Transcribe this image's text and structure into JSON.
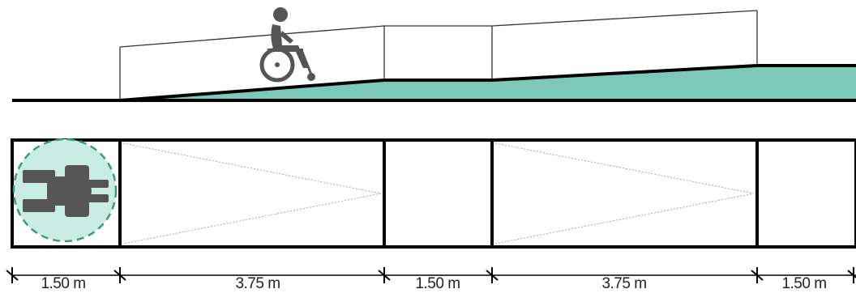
{
  "diagram": {
    "segments": [
      {
        "label": "1.50 m",
        "type": "landing"
      },
      {
        "label": "3.75 m",
        "type": "ramp"
      },
      {
        "label": "1.50 m",
        "type": "landing"
      },
      {
        "label": "3.75 m",
        "type": "ramp"
      },
      {
        "label": "1.50 m",
        "type": "landing"
      }
    ],
    "colors": {
      "ramp_fill": "#7dc8b8",
      "turning_circle_fill": "#c9ede3",
      "turning_circle_stroke": "#3c9a7f",
      "wheelchair": "#555555",
      "outline": "#000000",
      "slope_arrow": "#9aa6c8"
    },
    "icons": [
      "wheelchair-user-side-icon",
      "wheelchair-user-top-icon",
      "turning-circle"
    ]
  }
}
